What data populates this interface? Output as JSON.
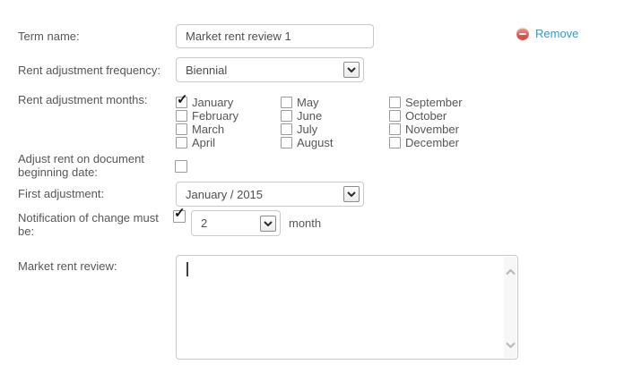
{
  "colors": {
    "link_blue": "#2b9cd6",
    "remove_red": "#db4f47",
    "label_gray": "#55565a",
    "border_gray": "#c9c9c9"
  },
  "form": {
    "term_name": {
      "label": "Term name:",
      "value": "Market rent review 1"
    },
    "remove_button": {
      "label": "Remove"
    },
    "frequency": {
      "label": "Rent adjustment frequency:",
      "value": "Biennial"
    },
    "months": {
      "label": "Rent adjustment months:",
      "columns": [
        [
          {
            "label": "January",
            "checked": true
          },
          {
            "label": "February",
            "checked": false
          },
          {
            "label": "March",
            "checked": false
          },
          {
            "label": "April",
            "checked": false
          }
        ],
        [
          {
            "label": "May",
            "checked": false
          },
          {
            "label": "June",
            "checked": false
          },
          {
            "label": "July",
            "checked": false
          },
          {
            "label": "August",
            "checked": false
          }
        ],
        [
          {
            "label": "September",
            "checked": false
          },
          {
            "label": "October",
            "checked": false
          },
          {
            "label": "November",
            "checked": false
          },
          {
            "label": "December",
            "checked": false
          }
        ]
      ]
    },
    "adjust_on_begin": {
      "label": "Adjust rent on document beginning date:",
      "checked": false
    },
    "first_adjustment": {
      "label": "First adjustment:",
      "value": "January / 2015"
    },
    "notification": {
      "label": "Notification of change must be:",
      "checked": true,
      "value": "2",
      "unit": "month"
    },
    "market_rent_review": {
      "label": "Market rent review:",
      "value": ""
    }
  }
}
